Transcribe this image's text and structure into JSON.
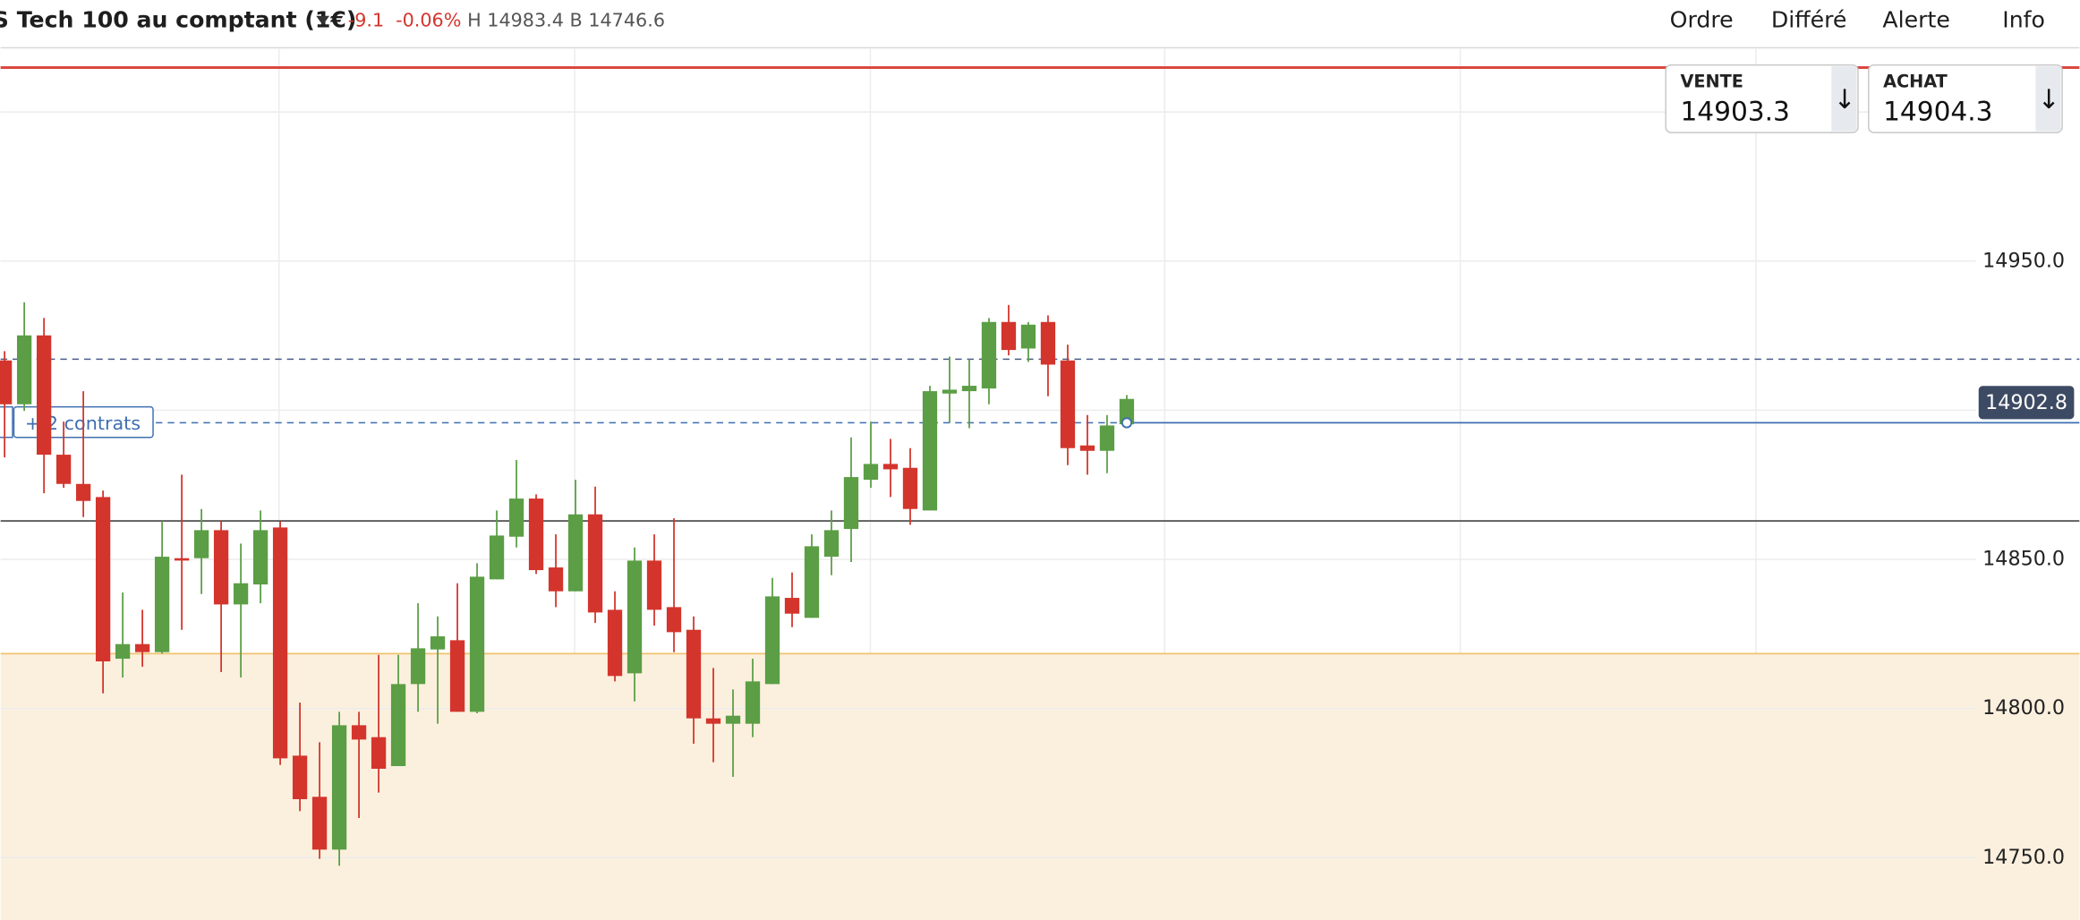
{
  "header": {
    "title": "S Tech 100 au comptant (1€)",
    "change": "-9.1",
    "change_pct": "-0.06%",
    "high_low": "H 14983.4 B 14746.6"
  },
  "nav": [
    "Ordre",
    "Différé",
    "Alerte",
    "Info"
  ],
  "quotes": {
    "sell": {
      "label": "VENTE",
      "price": "14903.3"
    },
    "buy": {
      "label": "ACHAT",
      "price": "14904.3"
    }
  },
  "chart_data": {
    "type": "candlestick",
    "up_color": "#5b9e45",
    "down_color": "#d3352c",
    "open": [
      14916.7,
      14902.0,
      14925.1,
      14885.1,
      14875.3,
      14870.9,
      14816.7,
      14821.6,
      14818.9,
      14850.4,
      14850.4,
      14859.8,
      14834.9,
      14841.6,
      14860.7,
      14784.2,
      14770.4,
      14752.7,
      14794.4,
      14790.4,
      14780.7,
      14808.2,
      14819.8,
      14822.9,
      14798.9,
      14843.3,
      14857.6,
      14870.4,
      14847.3,
      14839.3,
      14865.1,
      14833.1,
      14811.8,
      14849.6,
      14834.0,
      14826.4,
      14796.7,
      14794.9,
      14794.9,
      14808.2,
      14837.1,
      14830.4,
      14850.9,
      14860.2,
      14876.7,
      14882.0,
      14880.7,
      14866.4,
      14905.6,
      14906.4,
      14907.3,
      14929.6,
      14920.7,
      14929.6,
      14916.7,
      14888.2,
      14886.4,
      14895.3
    ],
    "high": [
      14919.8,
      14936.2,
      14930.9,
      14896.2,
      14906.4,
      14873.1,
      14838.9,
      14833.1,
      14862.9,
      14878.4,
      14866.9,
      14862.9,
      14855.3,
      14866.4,
      14862.9,
      14802.0,
      14788.7,
      14798.9,
      14798.9,
      14818.0,
      14818.0,
      14835.3,
      14830.9,
      14842.0,
      14848.7,
      14866.4,
      14883.3,
      14871.8,
      14858.4,
      14876.7,
      14874.4,
      14839.3,
      14854.0,
      14858.4,
      14863.8,
      14830.9,
      14813.6,
      14806.4,
      14816.7,
      14843.8,
      14845.6,
      14858.4,
      14866.4,
      14890.9,
      14896.2,
      14890.4,
      14887.3,
      14908.2,
      14918.0,
      14917.1,
      14930.9,
      14935.3,
      14929.6,
      14931.8,
      14922.0,
      14898.4,
      14898.4,
      14905.1
    ],
    "low": [
      14884.2,
      14899.8,
      14872.2,
      14874.0,
      14864.2,
      14805.1,
      14810.4,
      14814.0,
      14818.4,
      14826.4,
      14838.4,
      14812.2,
      14810.4,
      14835.3,
      14781.1,
      14765.6,
      14749.6,
      14747.3,
      14763.3,
      14771.8,
      14780.7,
      14798.9,
      14794.9,
      14798.9,
      14798.4,
      14843.3,
      14854.0,
      14845.1,
      14834.0,
      14839.3,
      14828.7,
      14809.1,
      14802.4,
      14827.8,
      14818.9,
      14788.2,
      14782.0,
      14777.1,
      14790.4,
      14808.2,
      14827.3,
      14830.4,
      14844.7,
      14849.1,
      14874.0,
      14870.9,
      14861.6,
      14866.4,
      14895.8,
      14894.0,
      14902.0,
      14918.4,
      14916.2,
      14904.7,
      14881.6,
      14878.4,
      14878.9,
      14894.9
    ],
    "close": [
      14902.0,
      14925.1,
      14885.1,
      14875.3,
      14869.6,
      14815.8,
      14821.6,
      14818.9,
      14850.9,
      14849.6,
      14859.8,
      14834.9,
      14842.0,
      14859.8,
      14783.3,
      14769.6,
      14752.7,
      14794.4,
      14789.6,
      14779.8,
      14808.2,
      14820.2,
      14824.2,
      14798.9,
      14844.2,
      14858.0,
      14870.4,
      14846.4,
      14839.3,
      14865.1,
      14832.2,
      14810.9,
      14849.6,
      14833.1,
      14825.6,
      14796.7,
      14794.9,
      14797.6,
      14809.1,
      14837.6,
      14831.8,
      14854.4,
      14859.8,
      14877.6,
      14882.0,
      14880.2,
      14866.9,
      14906.4,
      14906.9,
      14908.2,
      14929.6,
      14920.2,
      14928.7,
      14915.3,
      14887.3,
      14886.4,
      14894.9,
      14903.8
    ],
    "ylim": [
      14729.1,
      15021.1
    ],
    "yticks": [
      {
        "value": 14950,
        "label": "14950.0"
      },
      {
        "value": 14850,
        "label": "14850.0"
      },
      {
        "value": 14800,
        "label": "14800.0"
      },
      {
        "value": 14750,
        "label": "14750.0"
      }
    ],
    "minor_grid": [
      15000,
      14900
    ],
    "grid": true,
    "levels": [
      {
        "value": 15014.9,
        "color": "#d9483f",
        "style": "solid"
      },
      {
        "value": 14917.1,
        "color": "#4a5f8a",
        "style": "dashed"
      },
      {
        "value": 14895.8,
        "color": "#3f6fb0",
        "style": "position"
      },
      {
        "value": 14862.9,
        "color": "#222222",
        "style": "solid"
      },
      {
        "value": 14818.4,
        "color": "#f0c36d",
        "style": "zone"
      }
    ],
    "position_label": "+ 2 contrats",
    "last_price": 14902.8
  }
}
